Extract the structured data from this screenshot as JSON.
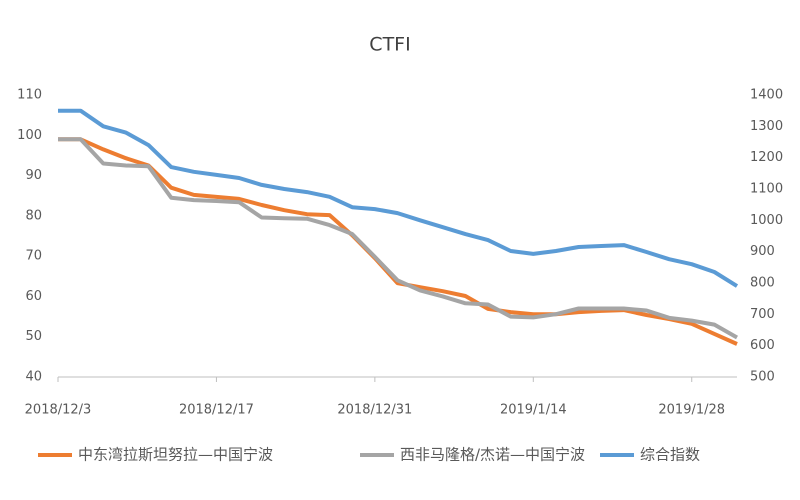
{
  "chart_data": {
    "type": "line",
    "title": "CTFI",
    "categories": [
      "2018/12/3",
      null,
      null,
      null,
      null,
      null,
      null,
      "2018/12/17",
      null,
      null,
      null,
      null,
      null,
      null,
      "2018/12/31",
      null,
      null,
      null,
      null,
      null,
      null,
      "2019/1/14",
      null,
      null,
      null,
      null,
      null,
      null,
      "2019/1/28",
      null,
      null
    ],
    "series": [
      {
        "name": "中东湾拉斯坦努拉—中国宁波",
        "color": "#ed7d31",
        "axis": "y",
        "values": [
          99,
          99,
          96.5,
          94.3,
          92.5,
          87,
          85.2,
          84.7,
          84.2,
          82.7,
          81.4,
          80.4,
          80.2,
          75.2,
          69.5,
          63.3,
          62.3,
          61.3,
          60.1,
          56.9,
          56.1,
          55.6,
          55.6,
          56.1,
          56.4,
          56.6,
          55.4,
          54.4,
          53.2,
          50.7,
          48.2
        ]
      },
      {
        "name": "西非马隆格/杰诺—中国宁波",
        "color": "#a5a5a5",
        "axis": "y",
        "values": [
          99,
          99,
          93,
          92.5,
          92.3,
          84.5,
          83.9,
          83.7,
          83.4,
          79.6,
          79.4,
          79.3,
          77.7,
          75.5,
          69.8,
          64,
          61.5,
          60,
          58.3,
          58,
          55,
          54.8,
          55.6,
          57,
          57,
          57,
          56.5,
          54.7,
          54,
          53,
          49.8
        ]
      },
      {
        "name": "综合指数",
        "color": "#5b9bd5",
        "axis": "y2",
        "values": [
          1350,
          1350,
          1300,
          1280,
          1240,
          1170,
          1155,
          1145,
          1135,
          1113,
          1100,
          1090,
          1075,
          1042,
          1036,
          1023,
          1000,
          978,
          956,
          937,
          902,
          893,
          902,
          915,
          918,
          921,
          899,
          876,
          860,
          835,
          790
        ]
      }
    ],
    "ylim": [
      40,
      110
    ],
    "yticks": [
      40,
      50,
      60,
      70,
      80,
      90,
      100,
      110
    ],
    "y2lim": [
      500,
      1400
    ],
    "y2ticks": [
      500,
      600,
      700,
      800,
      900,
      1000,
      1100,
      1200,
      1300,
      1400
    ],
    "grid": false,
    "legend": "bottom"
  }
}
